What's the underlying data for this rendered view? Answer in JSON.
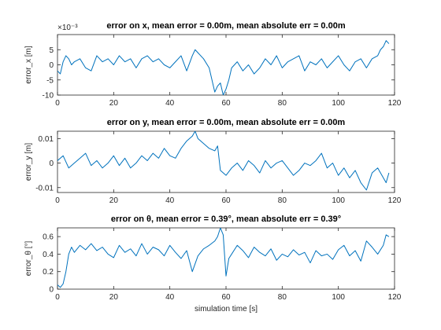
{
  "chart_data": [
    {
      "type": "line",
      "title": "error on x, mean error = 0.00m, mean absolute err = 0.00m",
      "xlabel": "",
      "ylabel": "error_x [m]",
      "exponent_label": "×10⁻³",
      "xlim": [
        0,
        120
      ],
      "ylim": [
        -10,
        10
      ],
      "xticks": [
        0,
        20,
        40,
        60,
        80,
        100,
        120
      ],
      "yticks": [
        -10,
        -5,
        0,
        5
      ],
      "ytick_labels": [
        "-10",
        "-5",
        "0",
        "5"
      ],
      "grid": false,
      "color": "#0072BD",
      "series": [
        {
          "x": [
            0,
            1,
            2,
            3,
            4,
            5,
            6,
            8,
            10,
            12,
            14,
            16,
            18,
            20,
            22,
            24,
            26,
            28,
            30,
            32,
            34,
            36,
            38,
            40,
            42,
            44,
            46,
            48,
            49,
            50,
            52,
            54,
            55,
            56,
            57,
            58,
            59,
            60,
            61,
            62,
            64,
            66,
            68,
            70,
            72,
            74,
            76,
            78,
            80,
            82,
            84,
            86,
            88,
            90,
            92,
            94,
            96,
            98,
            100,
            102,
            104,
            106,
            108,
            110,
            112,
            114,
            115,
            116,
            117,
            118
          ],
          "y": [
            -2,
            -3,
            1,
            3,
            2,
            0,
            1,
            2,
            -1,
            -2,
            3,
            1,
            2,
            0,
            3,
            1,
            2,
            -1,
            2,
            3,
            1,
            2,
            0,
            -1,
            1,
            3,
            -2,
            3,
            5,
            4,
            2,
            -1,
            -5,
            -9,
            -7,
            -6,
            -10,
            -8,
            -5,
            -1,
            1,
            -2,
            0,
            -3,
            -1,
            2,
            0,
            3,
            -1,
            1,
            2,
            3,
            -2,
            1,
            0,
            2,
            -1,
            1,
            3,
            0,
            -2,
            1,
            2,
            -1,
            2,
            3,
            5,
            6,
            8,
            7
          ]
        }
      ]
    },
    {
      "type": "line",
      "title": "error on y, mean error = 0.00m, mean absolute err = 0.00m",
      "xlabel": "",
      "ylabel": "error_y [m]",
      "xlim": [
        0,
        120
      ],
      "ylim": [
        -0.012,
        0.013
      ],
      "xticks": [
        0,
        20,
        40,
        60,
        80,
        100,
        120
      ],
      "yticks": [
        -0.01,
        0,
        0.01
      ],
      "ytick_labels": [
        "-0.01",
        "0",
        "0.01"
      ],
      "grid": false,
      "color": "#0072BD",
      "series": [
        {
          "x": [
            0,
            2,
            4,
            6,
            8,
            10,
            12,
            14,
            16,
            18,
            20,
            22,
            24,
            26,
            28,
            30,
            32,
            34,
            36,
            38,
            40,
            42,
            44,
            46,
            48,
            49,
            50,
            52,
            54,
            56,
            57,
            58,
            60,
            62,
            64,
            66,
            68,
            70,
            72,
            74,
            76,
            78,
            80,
            82,
            84,
            86,
            88,
            90,
            92,
            94,
            96,
            98,
            100,
            102,
            104,
            106,
            108,
            110,
            112,
            114,
            116,
            117,
            118
          ],
          "y": [
            0.001,
            0.003,
            -0.002,
            0,
            0.002,
            0.004,
            -0.001,
            0.001,
            -0.002,
            0,
            0.003,
            -0.001,
            0.002,
            -0.002,
            0,
            0.003,
            0.001,
            0.004,
            0.002,
            0.006,
            0.003,
            0.002,
            0.006,
            0.009,
            0.011,
            0.013,
            0.01,
            0.008,
            0.006,
            0.005,
            0.007,
            -0.003,
            -0.005,
            -0.002,
            0,
            -0.003,
            0.001,
            -0.001,
            -0.004,
            0.001,
            -0.002,
            0,
            0.001,
            -0.002,
            -0.005,
            -0.003,
            0,
            -0.001,
            0.001,
            0.004,
            -0.002,
            0,
            -0.005,
            -0.002,
            -0.006,
            -0.003,
            -0.008,
            -0.011,
            -0.004,
            -0.002,
            -0.006,
            -0.008,
            -0.004
          ]
        }
      ]
    },
    {
      "type": "line",
      "title": "error on θ, mean error = 0.39°, mean absolute err = 0.39°",
      "xlabel": "simulation time [s]",
      "ylabel": "error_θ [°]",
      "xlim": [
        0,
        120
      ],
      "ylim": [
        0,
        0.7
      ],
      "xticks": [
        0,
        20,
        40,
        60,
        80,
        100,
        120
      ],
      "yticks": [
        0,
        0.2,
        0.4,
        0.6
      ],
      "ytick_labels": [
        "0",
        "0.2",
        "0.4",
        "0.6"
      ],
      "grid": false,
      "color": "#0072BD",
      "series": [
        {
          "x": [
            0,
            1,
            2,
            3,
            4,
            5,
            6,
            8,
            10,
            12,
            14,
            16,
            18,
            20,
            22,
            24,
            26,
            28,
            30,
            32,
            34,
            36,
            38,
            40,
            42,
            44,
            46,
            48,
            50,
            52,
            54,
            56,
            57,
            58,
            59,
            60,
            61,
            62,
            64,
            66,
            68,
            70,
            72,
            74,
            76,
            78,
            80,
            82,
            84,
            86,
            88,
            90,
            92,
            94,
            96,
            98,
            100,
            102,
            104,
            106,
            108,
            110,
            112,
            114,
            116,
            117,
            118
          ],
          "y": [
            0.05,
            0.02,
            0.06,
            0.2,
            0.4,
            0.48,
            0.42,
            0.5,
            0.45,
            0.52,
            0.44,
            0.48,
            0.4,
            0.36,
            0.5,
            0.42,
            0.46,
            0.38,
            0.52,
            0.4,
            0.48,
            0.45,
            0.38,
            0.5,
            0.42,
            0.35,
            0.44,
            0.2,
            0.38,
            0.46,
            0.5,
            0.55,
            0.6,
            0.7,
            0.62,
            0.15,
            0.35,
            0.4,
            0.5,
            0.44,
            0.36,
            0.48,
            0.42,
            0.38,
            0.46,
            0.33,
            0.4,
            0.37,
            0.45,
            0.39,
            0.42,
            0.3,
            0.44,
            0.38,
            0.4,
            0.34,
            0.45,
            0.5,
            0.38,
            0.44,
            0.32,
            0.55,
            0.48,
            0.4,
            0.5,
            0.62,
            0.6
          ]
        }
      ]
    }
  ]
}
